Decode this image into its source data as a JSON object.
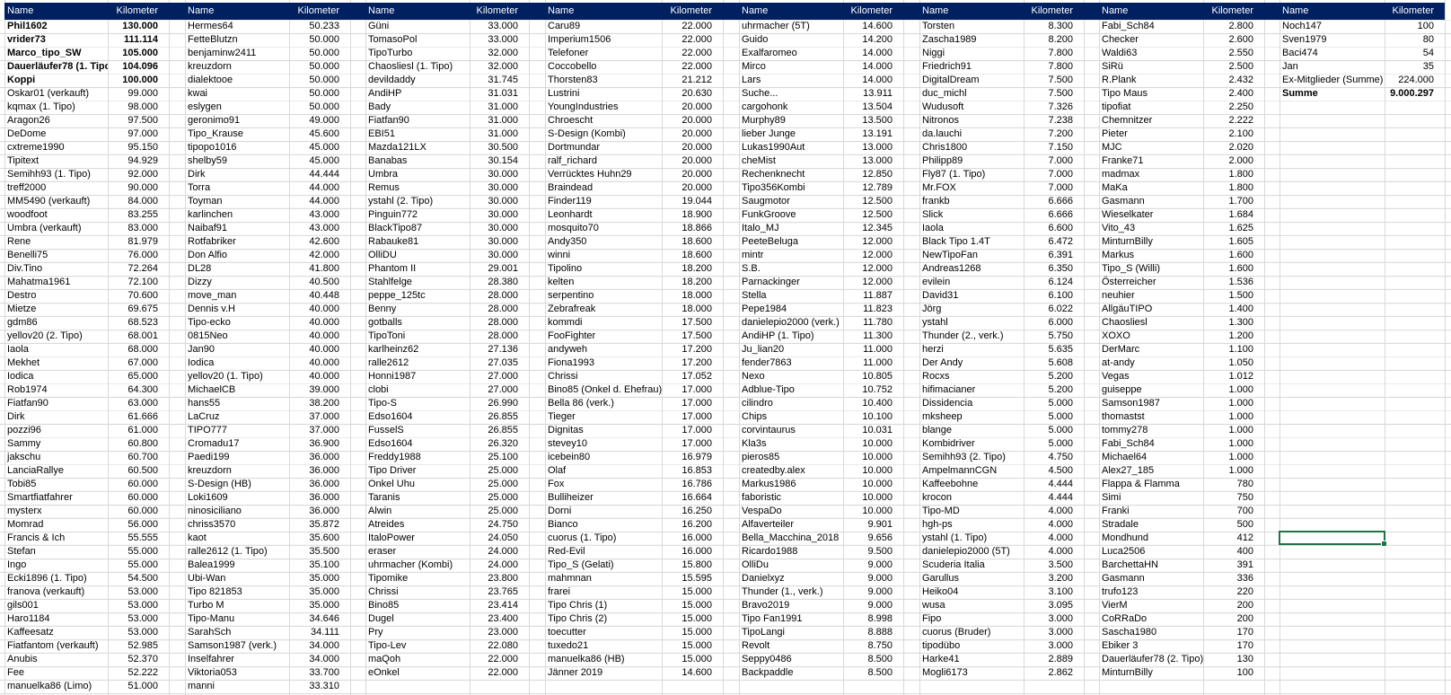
{
  "header": {
    "name_label": "Name",
    "km_label": "Kilometer"
  },
  "colors": {
    "header_bg": "#002060",
    "header_text": "#ffffff",
    "grid": "#d9d9d9",
    "selection": "#217346"
  },
  "bold_rows": {
    "column_0": [
      0,
      1,
      2,
      3,
      4
    ],
    "column_7": [
      5
    ]
  },
  "columns": [
    [
      [
        "Phil1602",
        "130.000"
      ],
      [
        "vrider73",
        "111.114"
      ],
      [
        "Marco_tipo_SW",
        "105.000"
      ],
      [
        "Dauerläufer78 (1. Tipo)",
        "104.096"
      ],
      [
        "Koppi",
        "100.000"
      ],
      [
        "Oskar01 (verkauft)",
        "99.000"
      ],
      [
        "kqmax (1. Tipo)",
        "98.000"
      ],
      [
        "Aragon26",
        "97.500"
      ],
      [
        "DeDome",
        "97.000"
      ],
      [
        "cxtreme1990",
        "95.150"
      ],
      [
        "Tipitext",
        "94.929"
      ],
      [
        "Semihh93 (1. Tipo)",
        "92.000"
      ],
      [
        "treff2000",
        "90.000"
      ],
      [
        "MM5490 (verkauft)",
        "84.000"
      ],
      [
        "woodfoot",
        "83.255"
      ],
      [
        "Umbra (verkauft)",
        "83.000"
      ],
      [
        "Rene",
        "81.979"
      ],
      [
        "Benelli75",
        "76.000"
      ],
      [
        "Div.Tino",
        "72.264"
      ],
      [
        "Mahatma1961",
        "72.100"
      ],
      [
        "Destro",
        "70.600"
      ],
      [
        "Mietze",
        "69.675"
      ],
      [
        "gdm86",
        "68.523"
      ],
      [
        "yellov20 (2. Tipo)",
        "68.001"
      ],
      [
        "Iaola",
        "68.000"
      ],
      [
        "Mekhet",
        "67.000"
      ],
      [
        "Iodica",
        "65.000"
      ],
      [
        "Rob1974",
        "64.300"
      ],
      [
        "Fiatfan90",
        "63.000"
      ],
      [
        "Dirk",
        "61.666"
      ],
      [
        "pozzi96",
        "61.000"
      ],
      [
        "Sammy",
        "60.800"
      ],
      [
        "jakschu",
        "60.700"
      ],
      [
        "LanciaRallye",
        "60.500"
      ],
      [
        "Tobi85",
        "60.000"
      ],
      [
        "Smartfiatfahrer",
        "60.000"
      ],
      [
        "mysterx",
        "60.000"
      ],
      [
        "Momrad",
        "56.000"
      ],
      [
        "Francis & Ich",
        "55.555"
      ],
      [
        "Stefan",
        "55.000"
      ],
      [
        "Ingo",
        "55.000"
      ],
      [
        "Ecki1896 (1. Tipo)",
        "54.500"
      ],
      [
        "franova (verkauft)",
        "53.000"
      ],
      [
        "gils001",
        "53.000"
      ],
      [
        "Haro1184",
        "53.000"
      ],
      [
        "Kaffeesatz",
        "53.000"
      ],
      [
        "Fiatfantom (verkauft)",
        "52.985"
      ],
      [
        "Anubis",
        "52.370"
      ],
      [
        "Fee",
        "52.222"
      ],
      [
        "manuelka86 (Limo)",
        "51.000"
      ]
    ],
    [
      [
        "Hermes64",
        "50.233"
      ],
      [
        "FetteBlutzn",
        "50.000"
      ],
      [
        "benjaminw2411",
        "50.000"
      ],
      [
        "kreuzdorn",
        "50.000"
      ],
      [
        "dialektooe",
        "50.000"
      ],
      [
        "kwai",
        "50.000"
      ],
      [
        "eslygen",
        "50.000"
      ],
      [
        "geronimo91",
        "49.000"
      ],
      [
        "Tipo_Krause",
        "45.600"
      ],
      [
        "tipopo1016",
        "45.000"
      ],
      [
        "shelby59",
        "45.000"
      ],
      [
        "Dirk",
        "44.444"
      ],
      [
        "Torra",
        "44.000"
      ],
      [
        "Toyman",
        "44.000"
      ],
      [
        "karlinchen",
        "43.000"
      ],
      [
        "Naibaf91",
        "43.000"
      ],
      [
        "Rotfabriker",
        "42.600"
      ],
      [
        "Don Alfio",
        "42.000"
      ],
      [
        "DL28",
        "41.800"
      ],
      [
        "Dizzy",
        "40.500"
      ],
      [
        "move_man",
        "40.448"
      ],
      [
        "Dennis v.H",
        "40.000"
      ],
      [
        "Tipo-ecko",
        "40.000"
      ],
      [
        "0815Neo",
        "40.000"
      ],
      [
        "Jan90",
        "40.000"
      ],
      [
        "Iodica",
        "40.000"
      ],
      [
        "yellov20 (1. Tipo)",
        "40.000"
      ],
      [
        "MichaelCB",
        "39.000"
      ],
      [
        "hans55",
        "38.200"
      ],
      [
        "LaCruz",
        "37.000"
      ],
      [
        "TIPO777",
        "37.000"
      ],
      [
        "Cromadu17",
        "36.900"
      ],
      [
        "Paedi199",
        "36.000"
      ],
      [
        "kreuzdorn",
        "36.000"
      ],
      [
        "S-Design (HB)",
        "36.000"
      ],
      [
        "Loki1609",
        "36.000"
      ],
      [
        "ninosiciliano",
        "36.000"
      ],
      [
        "chriss3570",
        "35.872"
      ],
      [
        "kaot",
        "35.600"
      ],
      [
        "ralle2612 (1. Tipo)",
        "35.500"
      ],
      [
        "Balea1999",
        "35.100"
      ],
      [
        "Ubi-Wan",
        "35.000"
      ],
      [
        "Tipo 821853",
        "35.000"
      ],
      [
        "Turbo M",
        "35.000"
      ],
      [
        "Tipo-Manu",
        "34.646"
      ],
      [
        "SarahSch",
        "34.111"
      ],
      [
        "Samson1987 (verk.)",
        "34.000"
      ],
      [
        "Inselfahrer",
        "34.000"
      ],
      [
        "Viktoria053",
        "33.700"
      ],
      [
        "manni",
        "33.310"
      ]
    ],
    [
      [
        "Güni",
        "33.000"
      ],
      [
        "TomasoPol",
        "33.000"
      ],
      [
        "TipoTurbo",
        "32.000"
      ],
      [
        "Chaosliesl (1. Tipo)",
        "32.000"
      ],
      [
        "devildaddy",
        "31.745"
      ],
      [
        "AndiHP",
        "31.031"
      ],
      [
        "Bady",
        "31.000"
      ],
      [
        "Fiatfan90",
        "31.000"
      ],
      [
        "EBI51",
        "31.000"
      ],
      [
        "Mazda121LX",
        "30.500"
      ],
      [
        "Banabas",
        "30.154"
      ],
      [
        "Umbra",
        "30.000"
      ],
      [
        "Remus",
        "30.000"
      ],
      [
        "ystahl (2. Tipo)",
        "30.000"
      ],
      [
        "Pinguin772",
        "30.000"
      ],
      [
        "BlackTipo87",
        "30.000"
      ],
      [
        "Rabauke81",
        "30.000"
      ],
      [
        "OlliDU",
        "30.000"
      ],
      [
        "Phantom II",
        "29.001"
      ],
      [
        "Stahlfelge",
        "28.380"
      ],
      [
        "peppe_125tc",
        "28.000"
      ],
      [
        "Benny",
        "28.000"
      ],
      [
        "gotballs",
        "28.000"
      ],
      [
        "TipoToni",
        "28.000"
      ],
      [
        "karlheinz62",
        "27.136"
      ],
      [
        "ralle2612",
        "27.035"
      ],
      [
        "Honni1987",
        "27.000"
      ],
      [
        "clobi",
        "27.000"
      ],
      [
        "Tipo-S",
        "26.990"
      ],
      [
        "Edso1604",
        "26.855"
      ],
      [
        "FusselS",
        "26.855"
      ],
      [
        "Edso1604",
        "26.320"
      ],
      [
        "Freddy1988",
        "25.100"
      ],
      [
        "Tipo Driver",
        "25.000"
      ],
      [
        "Onkel Uhu",
        "25.000"
      ],
      [
        "Taranis",
        "25.000"
      ],
      [
        "Alwin",
        "25.000"
      ],
      [
        "Atreides",
        "24.750"
      ],
      [
        "ItaloPower",
        "24.050"
      ],
      [
        "eraser",
        "24.000"
      ],
      [
        "uhrmacher (Kombi)",
        "24.000"
      ],
      [
        "Tipomike",
        "23.800"
      ],
      [
        "Chrissi",
        "23.765"
      ],
      [
        "Bino85",
        "23.414"
      ],
      [
        "Dugel",
        "23.400"
      ],
      [
        "Pry",
        "23.000"
      ],
      [
        "Tipo-Lev",
        "22.080"
      ],
      [
        "maQoh",
        "22.000"
      ],
      [
        "eOnkel",
        "22.000"
      ]
    ],
    [
      [
        "Caru89",
        "22.000"
      ],
      [
        "Imperium1506",
        "22.000"
      ],
      [
        "Telefoner",
        "22.000"
      ],
      [
        "Coccobello",
        "22.000"
      ],
      [
        "Thorsten83",
        "21.212"
      ],
      [
        "Lustrini",
        "20.630"
      ],
      [
        "YoungIndustries",
        "20.000"
      ],
      [
        "Chroescht",
        "20.000"
      ],
      [
        "S-Design (Kombi)",
        "20.000"
      ],
      [
        "Dortmundar",
        "20.000"
      ],
      [
        "ralf_richard",
        "20.000"
      ],
      [
        "Verrücktes Huhn29",
        "20.000"
      ],
      [
        "Braindead",
        "20.000"
      ],
      [
        "Finder119",
        "19.044"
      ],
      [
        "Leonhardt",
        "18.900"
      ],
      [
        "mosquito70",
        "18.866"
      ],
      [
        "Andy350",
        "18.600"
      ],
      [
        "winni",
        "18.600"
      ],
      [
        "Tipolino",
        "18.200"
      ],
      [
        "kelten",
        "18.200"
      ],
      [
        "serpentino",
        "18.000"
      ],
      [
        "Zebrafreak",
        "18.000"
      ],
      [
        "kommdi",
        "17.500"
      ],
      [
        "FooFighter",
        "17.500"
      ],
      [
        "andyweh",
        "17.200"
      ],
      [
        "Fiona1993",
        "17.200"
      ],
      [
        "Chrissi",
        "17.052"
      ],
      [
        "Bino85 (Onkel d. Ehefrau)",
        "17.000"
      ],
      [
        "Bella 86 (verk.)",
        "17.000"
      ],
      [
        "Tieger",
        "17.000"
      ],
      [
        "Dignitas",
        "17.000"
      ],
      [
        "stevey10",
        "17.000"
      ],
      [
        "icebein80",
        "16.979"
      ],
      [
        "Olaf",
        "16.853"
      ],
      [
        "Fox",
        "16.786"
      ],
      [
        "Bulliheizer",
        "16.664"
      ],
      [
        "Dorni",
        "16.250"
      ],
      [
        "Bianco",
        "16.200"
      ],
      [
        "cuorus (1. Tipo)",
        "16.000"
      ],
      [
        "Red-Evil",
        "16.000"
      ],
      [
        "Tipo_S (Gelati)",
        "15.800"
      ],
      [
        "mahmnan",
        "15.595"
      ],
      [
        "frarei",
        "15.000"
      ],
      [
        "Tipo Chris (1)",
        "15.000"
      ],
      [
        "Tipo Chris (2)",
        "15.000"
      ],
      [
        "toecutter",
        "15.000"
      ],
      [
        "tuxedo21",
        "15.000"
      ],
      [
        "manuelka86 (HB)",
        "15.000"
      ],
      [
        "Jänner 2019",
        "14.600"
      ]
    ],
    [
      [
        "uhrmacher (5T)",
        "14.600"
      ],
      [
        "Guido",
        "14.200"
      ],
      [
        "Exalfaromeo",
        "14.000"
      ],
      [
        "Mirco",
        "14.000"
      ],
      [
        "Lars",
        "14.000"
      ],
      [
        "Suche...",
        "13.911"
      ],
      [
        "cargohonk",
        "13.504"
      ],
      [
        "Murphy89",
        "13.500"
      ],
      [
        "lieber Junge",
        "13.191"
      ],
      [
        "Lukas1990Aut",
        "13.000"
      ],
      [
        "cheMist",
        "13.000"
      ],
      [
        "Rechenknecht",
        "12.850"
      ],
      [
        "Tipo356Kombi",
        "12.789"
      ],
      [
        "Saugmotor",
        "12.500"
      ],
      [
        "FunkGroove",
        "12.500"
      ],
      [
        "Italo_MJ",
        "12.345"
      ],
      [
        "PeeteBeluga",
        "12.000"
      ],
      [
        "mintr",
        "12.000"
      ],
      [
        "S.B.",
        "12.000"
      ],
      [
        "Parnackinger",
        "12.000"
      ],
      [
        "Stella",
        "11.887"
      ],
      [
        "Pepe1984",
        "11.823"
      ],
      [
        "danielepio2000 (verk.)",
        "11.780"
      ],
      [
        "AndiHP (1. Tipo)",
        "11.300"
      ],
      [
        "Ju_lian20",
        "11.000"
      ],
      [
        "fender7863",
        "11.000"
      ],
      [
        "Nexo",
        "10.805"
      ],
      [
        "Adblue-Tipo",
        "10.752"
      ],
      [
        "cilindro",
        "10.400"
      ],
      [
        "Chips",
        "10.100"
      ],
      [
        "corvintaurus",
        "10.031"
      ],
      [
        "Kla3s",
        "10.000"
      ],
      [
        "pieros85",
        "10.000"
      ],
      [
        "createdby.alex",
        "10.000"
      ],
      [
        "Markus1986",
        "10.000"
      ],
      [
        "faboristic",
        "10.000"
      ],
      [
        "VespaDo",
        "10.000"
      ],
      [
        "Alfaverteiler",
        "9.901"
      ],
      [
        "Bella_Macchina_2018",
        "9.656"
      ],
      [
        "Ricardo1988",
        "9.500"
      ],
      [
        "OlliDu",
        "9.000"
      ],
      [
        "Danielxyz",
        "9.000"
      ],
      [
        "Thunder (1., verk.)",
        "9.000"
      ],
      [
        "Bravo2019",
        "9.000"
      ],
      [
        "Tipo Fan1991",
        "8.998"
      ],
      [
        "TipoLangi",
        "8.888"
      ],
      [
        "Revolt",
        "8.750"
      ],
      [
        "Seppy0486",
        "8.500"
      ],
      [
        "Backpaddle",
        "8.500"
      ]
    ],
    [
      [
        "Torsten",
        "8.300"
      ],
      [
        "Zascha1989",
        "8.200"
      ],
      [
        "Niggi",
        "7.800"
      ],
      [
        "Friedrich91",
        "7.800"
      ],
      [
        "DigitalDream",
        "7.500"
      ],
      [
        "duc_michl",
        "7.500"
      ],
      [
        "Wudusoft",
        "7.326"
      ],
      [
        "Nitronos",
        "7.238"
      ],
      [
        "da.lauchi",
        "7.200"
      ],
      [
        "Chris1800",
        "7.150"
      ],
      [
        "Philipp89",
        "7.000"
      ],
      [
        "Fly87 (1. Tipo)",
        "7.000"
      ],
      [
        "Mr.FOX",
        "7.000"
      ],
      [
        "frankb",
        "6.666"
      ],
      [
        "Slick",
        "6.666"
      ],
      [
        "Iaola",
        "6.600"
      ],
      [
        "Black Tipo 1.4T",
        "6.472"
      ],
      [
        "NewTipoFan",
        "6.391"
      ],
      [
        "Andreas1268",
        "6.350"
      ],
      [
        "evilein",
        "6.124"
      ],
      [
        "David31",
        "6.100"
      ],
      [
        "Jörg",
        "6.022"
      ],
      [
        "ystahl",
        "6.000"
      ],
      [
        "Thunder (2., verk.)",
        "5.750"
      ],
      [
        "herzi",
        "5.635"
      ],
      [
        "Der Andy",
        "5.608"
      ],
      [
        "Rocxs",
        "5.200"
      ],
      [
        "hifimacianer",
        "5.200"
      ],
      [
        "Dissidencia",
        "5.000"
      ],
      [
        "mksheep",
        "5.000"
      ],
      [
        "blange",
        "5.000"
      ],
      [
        "Kombidriver",
        "5.000"
      ],
      [
        "Semihh93 (2. Tipo)",
        "4.750"
      ],
      [
        "AmpelmannCGN",
        "4.500"
      ],
      [
        "Kaffeebohne",
        "4.444"
      ],
      [
        "krocon",
        "4.444"
      ],
      [
        "Tipo-MD",
        "4.000"
      ],
      [
        "hgh-ps",
        "4.000"
      ],
      [
        "ystahl (1. Tipo)",
        "4.000"
      ],
      [
        "danielepio2000 (5T)",
        "4.000"
      ],
      [
        "Scuderia Italia",
        "3.500"
      ],
      [
        "Garullus",
        "3.200"
      ],
      [
        "Heiko04",
        "3.100"
      ],
      [
        "wusa",
        "3.095"
      ],
      [
        "Fipo",
        "3.000"
      ],
      [
        "cuorus (Bruder)",
        "3.000"
      ],
      [
        "tipodübo",
        "3.000"
      ],
      [
        "Harke41",
        "2.889"
      ],
      [
        "Mogli6173",
        "2.862"
      ]
    ],
    [
      [
        "Fabi_Sch84",
        "2.800"
      ],
      [
        "Checker",
        "2.600"
      ],
      [
        "Waldi63",
        "2.550"
      ],
      [
        "SiRü",
        "2.500"
      ],
      [
        "R.Plank",
        "2.432"
      ],
      [
        "Tipo Maus",
        "2.400"
      ],
      [
        "tipofiat",
        "2.250"
      ],
      [
        "Chemnitzer",
        "2.222"
      ],
      [
        "Pieter",
        "2.100"
      ],
      [
        "MJC",
        "2.020"
      ],
      [
        "Franke71",
        "2.000"
      ],
      [
        "madmax",
        "1.800"
      ],
      [
        "MaKa",
        "1.800"
      ],
      [
        "Gasmann",
        "1.700"
      ],
      [
        "Wieselkater",
        "1.684"
      ],
      [
        "Vito_43",
        "1.625"
      ],
      [
        "MinturnBilly",
        "1.605"
      ],
      [
        "Markus",
        "1.600"
      ],
      [
        "Tipo_S (Willi)",
        "1.600"
      ],
      [
        "Österreicher",
        "1.536"
      ],
      [
        "neuhier",
        "1.500"
      ],
      [
        "AllgäuTIPO",
        "1.400"
      ],
      [
        "Chaosliesl",
        "1.300"
      ],
      [
        "XOXO",
        "1.200"
      ],
      [
        "DerMarc",
        "1.100"
      ],
      [
        "at-andy",
        "1.050"
      ],
      [
        "Vegas",
        "1.012"
      ],
      [
        "guiseppe",
        "1.000"
      ],
      [
        "Samson1987",
        "1.000"
      ],
      [
        "thomastst",
        "1.000"
      ],
      [
        "tommy278",
        "1.000"
      ],
      [
        "Fabi_Sch84",
        "1.000"
      ],
      [
        "Michael64",
        "1.000"
      ],
      [
        "Alex27_185",
        "1.000"
      ],
      [
        "Flappa & Flamma",
        "780"
      ],
      [
        "Simi",
        "750"
      ],
      [
        "Franki",
        "700"
      ],
      [
        "Stradale",
        "500"
      ],
      [
        "Mondhund",
        "412"
      ],
      [
        "Luca2506",
        "400"
      ],
      [
        "BarchettaHN",
        "391"
      ],
      [
        "Gasmann",
        "336"
      ],
      [
        "trufo123",
        "220"
      ],
      [
        "VierM",
        "200"
      ],
      [
        "CoRRaDo",
        "200"
      ],
      [
        "Sascha1980",
        "170"
      ],
      [
        "Ebiker 3",
        "170"
      ],
      [
        "Dauerläufer78 (2. Tipo)",
        "130"
      ],
      [
        "MinturnBilly",
        "100"
      ]
    ],
    [
      [
        "Noch147",
        "100"
      ],
      [
        "Sven1979",
        "80"
      ],
      [
        "Baci474",
        "54"
      ],
      [
        "Jan",
        "35"
      ],
      [
        "Ex-Mitglieder (Summe)",
        "224.000"
      ],
      [
        "Summe",
        "9.000.297"
      ]
    ]
  ]
}
